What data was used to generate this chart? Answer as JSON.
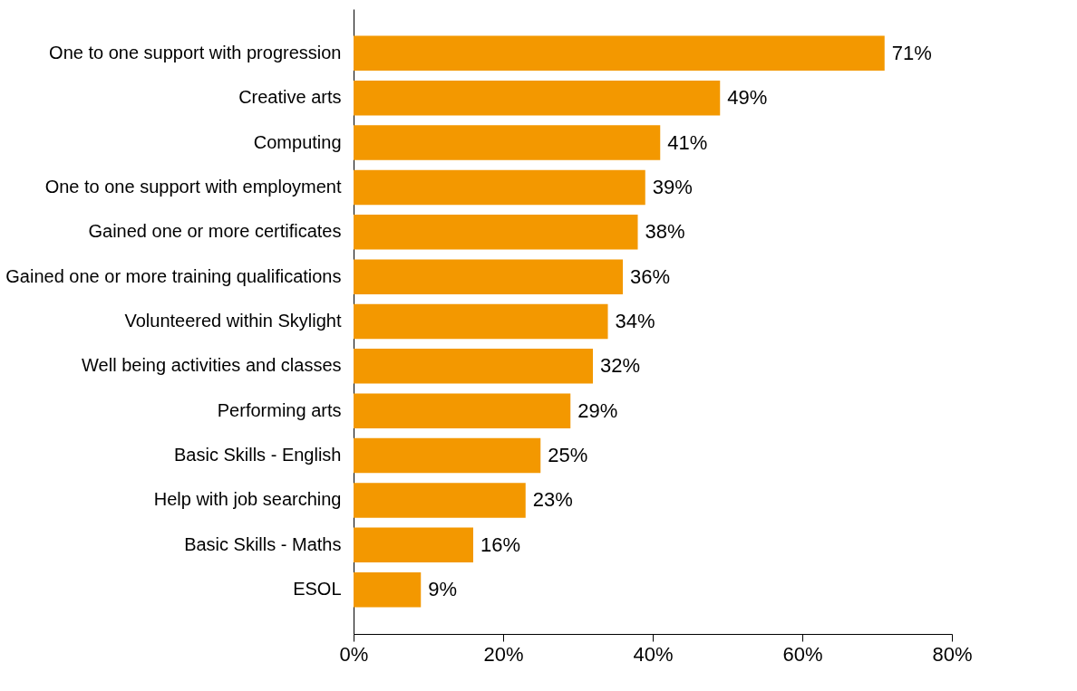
{
  "chart_data": {
    "type": "bar",
    "orientation": "horizontal",
    "categories": [
      "One to one support with progression",
      "Creative arts",
      "Computing",
      "One to one support with employment",
      "Gained one or more certificates",
      "Gained one or more training qualifications",
      "Volunteered within Skylight",
      "Well being activities and classes",
      "Performing arts",
      "Basic Skills - English",
      "Help with job searching",
      "Basic Skills - Maths",
      "ESOL"
    ],
    "values": [
      71,
      49,
      41,
      39,
      38,
      36,
      34,
      32,
      29,
      25,
      23,
      16,
      9
    ],
    "value_labels": [
      "71%",
      "49%",
      "41%",
      "39%",
      "38%",
      "36%",
      "34%",
      "32%",
      "29%",
      "25%",
      "23%",
      "16%",
      "9%"
    ],
    "color": "#f39800",
    "xlim": [
      0,
      80
    ],
    "xticks": [
      {
        "value": 0,
        "label": "0%"
      },
      {
        "value": 20,
        "label": "20%"
      },
      {
        "value": 40,
        "label": "40%"
      },
      {
        "value": 60,
        "label": "60%"
      },
      {
        "value": 80,
        "label": "80%"
      }
    ],
    "grid": false
  }
}
